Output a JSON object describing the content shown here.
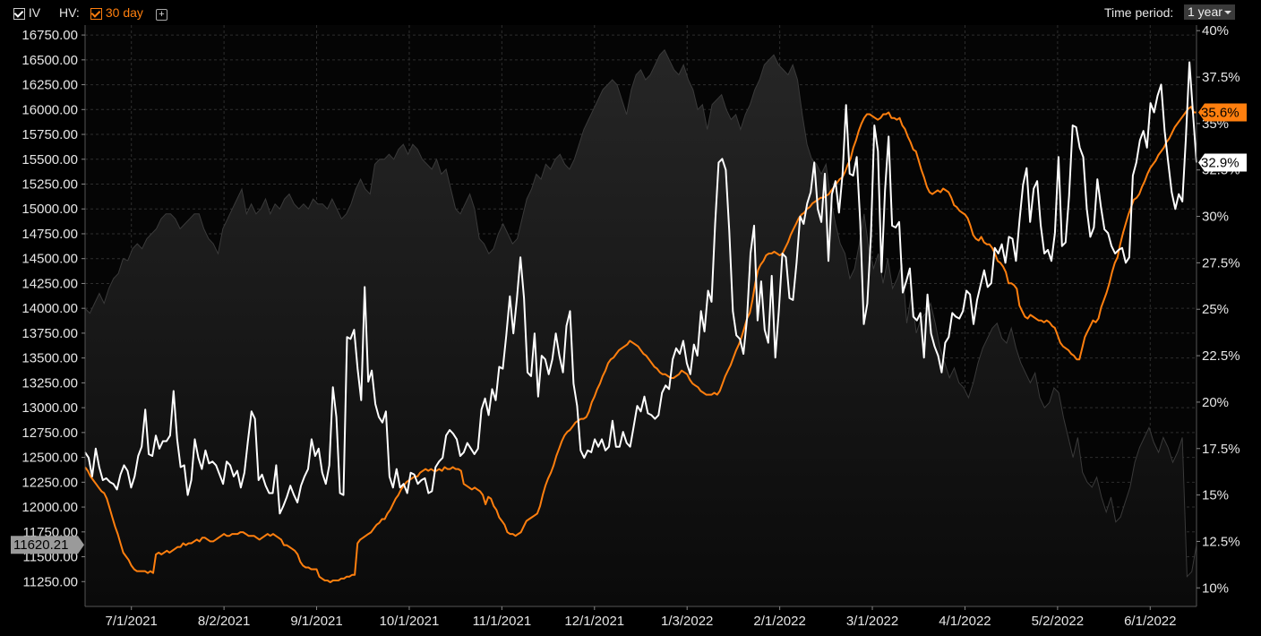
{
  "toolbar": {
    "iv_label": "IV",
    "hv_label": "HV:",
    "hv_period_label": "30 day",
    "add_label": "+",
    "time_period_label": "Time period:",
    "time_period_value": "1 year"
  },
  "colors": {
    "background": "#000000",
    "iv_line": "#ffffff",
    "hv_line": "#ff7f0e",
    "price_area": "#1e1e1e",
    "grid": "#2e2e2e"
  },
  "chart_data": {
    "type": "line",
    "x_tick_labels": [
      "7/1/2021",
      "8/2/2021",
      "9/1/2021",
      "10/1/2021",
      "11/1/2021",
      "12/1/2021",
      "1/3/2022",
      "2/1/2022",
      "3/1/2022",
      "4/1/2022",
      "5/2/2022",
      "6/1/2022"
    ],
    "left_axis": {
      "ticks": [
        11250,
        11500,
        11750,
        12000,
        12250,
        12500,
        12750,
        13000,
        13250,
        13500,
        13750,
        14000,
        14250,
        14500,
        14750,
        15000,
        15250,
        15500,
        15750,
        16000,
        16250,
        16500,
        16750
      ],
      "tick_labels": [
        "11250.00",
        "11500.00",
        "11750.00",
        "12000.00",
        "12250.00",
        "12500.00",
        "12750.00",
        "13000.00",
        "13250.00",
        "13500.00",
        "13750.00",
        "14000.00",
        "14250.00",
        "14500.00",
        "14750.00",
        "15000.00",
        "15250.00",
        "15500.00",
        "15750.00",
        "16000.00",
        "16250.00",
        "16500.00",
        "16750.00"
      ],
      "range": [
        11000,
        16850
      ]
    },
    "right_axis": {
      "ticks": [
        10,
        12.5,
        15,
        17.5,
        20,
        22.5,
        25,
        27.5,
        30,
        32.5,
        35,
        37.5,
        40
      ],
      "tick_labels": [
        "10%",
        "12.5%",
        "15%",
        "17.5%",
        "20%",
        "22.5%",
        "25%",
        "27.5%",
        "30%",
        "32.5%",
        "35%",
        "37.5%",
        "40%"
      ],
      "range": [
        9.0,
        40.3
      ]
    },
    "last_price_label": "11620.21",
    "last_hv_label": "35.6%",
    "last_iv_label": "32.9%",
    "series": [
      {
        "key": "price",
        "axis": "left",
        "values": [
          14000,
          13950,
          14050,
          14150,
          14050,
          14200,
          14300,
          14350,
          14500,
          14480,
          14600,
          14650,
          14600,
          14700,
          14750,
          14800,
          14900,
          14950,
          14950,
          14900,
          14800,
          14850,
          14900,
          14950,
          14950,
          14800,
          14700,
          14650,
          14550,
          14800,
          14900,
          15000,
          15100,
          15200,
          14950,
          15050,
          14950,
          15000,
          15100,
          14950,
          15050,
          15000,
          15100,
          15150,
          15050,
          15000,
          15050,
          15000,
          15100,
          15050,
          15050,
          15000,
          15100,
          15000,
          14900,
          14950,
          15050,
          15200,
          15300,
          15200,
          15150,
          15450,
          15500,
          15500,
          15550,
          15500,
          15600,
          15650,
          15550,
          15650,
          15600,
          15500,
          15450,
          15400,
          15500,
          15350,
          15400,
          15200,
          15000,
          14950,
          15050,
          15150,
          15000,
          14700,
          14650,
          14550,
          14600,
          14750,
          14850,
          14750,
          14650,
          14700,
          14900,
          15100,
          15200,
          15350,
          15300,
          15450,
          15400,
          15500,
          15550,
          15450,
          15400,
          15500,
          15650,
          15800,
          15900,
          16000,
          16100,
          16200,
          16250,
          16300,
          16250,
          16100,
          15950,
          16200,
          16350,
          16400,
          16300,
          16350,
          16450,
          16550,
          16600,
          16500,
          16400,
          16350,
          16450,
          16300,
          16200,
          16000,
          16050,
          15800,
          16050,
          16100,
          16150,
          16000,
          15900,
          15950,
          15800,
          15950,
          16050,
          16200,
          16300,
          16450,
          16500,
          16550,
          16450,
          16400,
          16350,
          16450,
          16300,
          15950,
          15650,
          15500,
          15450,
          15350,
          15450,
          15100,
          14850,
          14650,
          14550,
          14300,
          14400,
          14650,
          14950,
          14600,
          14400,
          14550,
          14250,
          14500,
          14200,
          14300,
          14450,
          13850,
          14150,
          13750,
          13900,
          13950,
          14050,
          13850,
          13600,
          13450,
          13300,
          13400,
          13250,
          13200,
          13100,
          13250,
          13450,
          13600,
          13700,
          13800,
          13850,
          13700,
          13650,
          13800,
          13600,
          13450,
          13350,
          13250,
          13350,
          13100,
          13000,
          13050,
          13200,
          13150,
          12900,
          12700,
          12500,
          12700,
          12350,
          12250,
          12200,
          12300,
          12100,
          11950,
          12100,
          11850,
          11900,
          12050,
          12200,
          12450,
          12600,
          12700,
          12800,
          12650,
          12550,
          12700,
          12600,
          12450,
          12550,
          12700,
          11300,
          11350,
          11620
        ]
      },
      {
        "key": "iv",
        "axis": "right",
        "values": [
          17.3,
          17.0,
          16.0,
          17.5,
          16.5,
          15.8,
          15.9,
          15.7,
          15.6,
          15.3,
          16.1,
          16.6,
          16.3,
          15.4,
          16.0,
          17.1,
          17.6,
          19.6,
          17.2,
          17.1,
          18.2,
          17.5,
          17.9,
          17.9,
          18.2,
          20.6,
          18.0,
          16.5,
          16.6,
          15.0,
          15.8,
          18.0,
          17.0,
          16.4,
          17.4,
          16.7,
          16.8,
          16.6,
          16.1,
          15.6,
          16.8,
          16.6,
          16.0,
          16.3,
          15.4,
          16.2,
          17.9,
          19.5,
          19.1,
          15.8,
          16.1,
          15.5,
          15.1,
          15.1,
          16.6,
          14.0,
          14.4,
          14.9,
          15.5,
          15.0,
          14.6,
          15.5,
          16.0,
          16.4,
          18.0,
          17.1,
          17.5,
          16.2,
          15.6,
          16.6,
          20.8,
          19.2,
          15.1,
          15.0,
          23.5,
          23.4,
          23.9,
          21.8,
          20.1,
          26.2,
          21.1,
          21.7,
          19.9,
          19.2,
          18.9,
          19.5,
          16.0,
          15.4,
          16.4,
          15.4,
          15.6,
          15.1,
          16.2,
          16.1,
          15.6,
          15.8,
          15.9,
          15.1,
          15.2,
          16.5,
          16.8,
          17.0,
          18.2,
          18.5,
          18.3,
          18.0,
          17.1,
          17.3,
          17.8,
          17.5,
          17.2,
          17.5,
          19.6,
          20.2,
          19.3,
          20.7,
          20.1,
          21.9,
          21.8,
          23.6,
          25.7,
          23.7,
          25.6,
          27.8,
          25.6,
          21.6,
          21.4,
          23.7,
          20.3,
          22.5,
          22.3,
          21.5,
          22.3,
          23.7,
          22.5,
          21.6,
          24.1,
          24.9,
          21.0,
          19.8,
          17.4,
          17.0,
          17.4,
          17.3,
          18.0,
          17.6,
          18.0,
          17.4,
          17.6,
          19.0,
          17.6,
          17.6,
          18.4,
          17.8,
          17.6,
          18.7,
          19.8,
          19.5,
          20.3,
          19.4,
          19.3,
          19.1,
          19.3,
          20.5,
          20.9,
          20.7,
          22.3,
          22.9,
          22.6,
          23.3,
          22.1,
          21.5,
          23.1,
          22.5,
          24.9,
          23.8,
          26.0,
          25.4,
          29.6,
          32.9,
          33.1,
          32.5,
          29.2,
          24.9,
          23.6,
          23.4,
          22.6,
          24.5,
          28.0,
          29.5,
          24.4,
          26.5,
          23.9,
          23.2,
          26.8,
          22.4,
          24.9,
          28.0,
          27.8,
          25.6,
          25.5,
          27.5,
          30.0,
          29.6,
          30.7,
          31.3,
          32.9,
          30.4,
          29.7,
          32.3,
          27.6,
          31.2,
          31.9,
          30.2,
          32.3,
          36.0,
          32.3,
          32.2,
          33.2,
          29.7,
          24.2,
          25.3,
          28.9,
          34.9,
          33.5,
          27.0,
          31.4,
          34.3,
          29.5,
          29.4,
          29.7,
          25.9,
          26.5,
          27.2,
          24.6,
          24.4,
          24.8,
          22.4,
          25.8,
          23.7,
          23.0,
          22.5,
          21.6,
          23.2,
          23.5,
          24.8,
          24.6,
          24.5,
          24.9,
          26.0,
          25.8,
          24.2,
          25.5,
          26.3,
          27.1,
          26.2,
          26.4,
          28.3,
          28.0,
          28.5,
          27.5,
          28.9,
          28.8,
          27.6,
          29.8,
          31.7,
          32.6,
          29.7,
          31.5,
          31.9,
          29.5,
          28.0,
          28.2,
          27.6,
          29.1,
          33.2,
          28.4,
          28.6,
          31.1,
          34.9,
          34.8,
          33.7,
          33.2,
          30.4,
          28.9,
          29.4,
          32.0,
          30.5,
          29.3,
          29.1,
          28.4,
          28.0,
          28.2,
          28.3,
          27.5,
          27.8,
          32.2,
          32.9,
          34.1,
          34.6,
          33.7,
          36.1,
          35.6,
          36.5,
          37.1,
          34.6,
          32.9,
          31.3,
          30.4,
          31.2,
          30.8,
          34.2,
          38.3,
          35.6,
          32.9
        ]
      },
      {
        "key": "hv",
        "axis": "right",
        "values": [
          16.5,
          16.3,
          16.0,
          15.8,
          15.6,
          15.4,
          15.2,
          15.1,
          14.8,
          14.3,
          13.8,
          13.3,
          12.9,
          12.4,
          11.9,
          11.7,
          11.5,
          11.2,
          11.0,
          10.9,
          10.9,
          10.9,
          10.9,
          10.8,
          10.9,
          10.8,
          11.8,
          11.9,
          11.8,
          11.9,
          12.0,
          11.9,
          12.0,
          12.1,
          12.2,
          12.2,
          12.4,
          12.3,
          12.4,
          12.4,
          12.5,
          12.6,
          12.5,
          12.7,
          12.7,
          12.6,
          12.5,
          12.5,
          12.6,
          12.7,
          12.8,
          12.9,
          12.8,
          12.8,
          12.9,
          12.9,
          12.9,
          13.0,
          13.0,
          12.9,
          12.8,
          12.8,
          12.8,
          12.7,
          12.6,
          12.7,
          12.8,
          12.9,
          12.8,
          12.9,
          12.8,
          12.7,
          12.6,
          12.3,
          12.3,
          12.2,
          12.1,
          12.0,
          11.8,
          11.4,
          11.2,
          11.1,
          11.1,
          11.0,
          11.0,
          11.0,
          10.6,
          10.5,
          10.4,
          10.4,
          10.3,
          10.4,
          10.4,
          10.4,
          10.5,
          10.5,
          10.6,
          10.6,
          10.7,
          10.7,
          12.4,
          12.6,
          12.7,
          12.8,
          12.9,
          13.0,
          13.2,
          13.4,
          13.5,
          13.7,
          13.7,
          14.0,
          14.2,
          14.5,
          14.8,
          15.0,
          15.3,
          15.5,
          15.7,
          15.8,
          15.9,
          16.0,
          16.0,
          16.2,
          16.3,
          16.4,
          16.3,
          16.4,
          16.3,
          16.3,
          16.4,
          16.3,
          16.5,
          16.4,
          16.4,
          16.5,
          16.4,
          16.4,
          16.3,
          15.6,
          15.5,
          15.4,
          15.3,
          15.4,
          15.3,
          15.2,
          15.0,
          14.5,
          14.9,
          14.8,
          14.4,
          14.2,
          13.8,
          13.6,
          13.4,
          13.0,
          12.9,
          12.9,
          12.8,
          12.9,
          13.0,
          13.3,
          13.6,
          13.7,
          13.8,
          13.9,
          14.0,
          14.4,
          15.0,
          15.5,
          15.9,
          16.2,
          16.6,
          17.1,
          17.5,
          17.9,
          18.2,
          18.4,
          18.5,
          18.7,
          18.9,
          19.0,
          19.1,
          19.1,
          19.2,
          19.5,
          20.0,
          20.3,
          20.7,
          21.0,
          21.4,
          21.7,
          22.1,
          22.3,
          22.4,
          22.6,
          22.8,
          22.9,
          23.0,
          23.1,
          23.3,
          23.2,
          23.1,
          23.0,
          22.8,
          22.6,
          22.5,
          22.3,
          22.1,
          21.9,
          21.8,
          21.6,
          21.5,
          21.5,
          21.4,
          21.3,
          21.3,
          21.4,
          21.5,
          21.7,
          21.6,
          21.5,
          21.2,
          21.0,
          20.9,
          20.8,
          20.6,
          20.5,
          20.4,
          20.4,
          20.4,
          20.5,
          20.4,
          20.6,
          21.0,
          21.4,
          21.7,
          22.0,
          22.4,
          22.8,
          23.1,
          23.5,
          24.0,
          24.5,
          24.8,
          25.5,
          26.4,
          27.1,
          27.4,
          27.6,
          27.9,
          28.0,
          28.0,
          28.1,
          28.0,
          27.9,
          28.0,
          28.3,
          28.6,
          29.0,
          29.3,
          29.6,
          29.9,
          30.1,
          30.2,
          30.4,
          30.5,
          30.7,
          30.8,
          30.9,
          31.0,
          31.0,
          31.1,
          31.2,
          31.4,
          31.6,
          31.8,
          32.0,
          32.1,
          32.4,
          32.8,
          33.1,
          33.7,
          34.1,
          34.6,
          35.0,
          35.3,
          35.5,
          35.5,
          35.4,
          35.3,
          35.2,
          35.3,
          35.5,
          35.5,
          35.6,
          35.3,
          35.3,
          35.2,
          35.3,
          34.9,
          34.7,
          34.3,
          34.0,
          33.6,
          33.5,
          33.0,
          32.5,
          32.1,
          31.6,
          31.3,
          31.2,
          31.3,
          31.4,
          31.3,
          31.5,
          31.4,
          31.3,
          31.0,
          30.6,
          30.5,
          30.3,
          30.2,
          30.1,
          29.9,
          29.5,
          29.0,
          28.8,
          28.7,
          28.9,
          28.6,
          28.5,
          28.5,
          28.3,
          28.0,
          27.6,
          27.5,
          27.3,
          27.0,
          26.4,
          26.4,
          26.3,
          26.1,
          25.2,
          24.9,
          24.6,
          24.5,
          24.7,
          24.6,
          24.5,
          24.4,
          24.4,
          24.3,
          24.4,
          24.3,
          24.1,
          24.0,
          23.6,
          23.2,
          23.0,
          22.9,
          22.8,
          22.6,
          22.5,
          22.3,
          22.3,
          22.9,
          23.5,
          23.8,
          24.1,
          24.4,
          24.3,
          24.5,
          25.1,
          25.5,
          25.9,
          26.4,
          27.0,
          27.5,
          27.8,
          28.5,
          29.1,
          29.6,
          30.1,
          30.5,
          30.9,
          31.0,
          31.2,
          31.6,
          31.9,
          32.3,
          32.6,
          32.8,
          33.0,
          33.3,
          33.5,
          33.7,
          34.0,
          34.2,
          34.5,
          34.8,
          35.0,
          35.2,
          35.4,
          35.6,
          35.8,
          35.9,
          35.6,
          35.6
        ]
      }
    ]
  }
}
